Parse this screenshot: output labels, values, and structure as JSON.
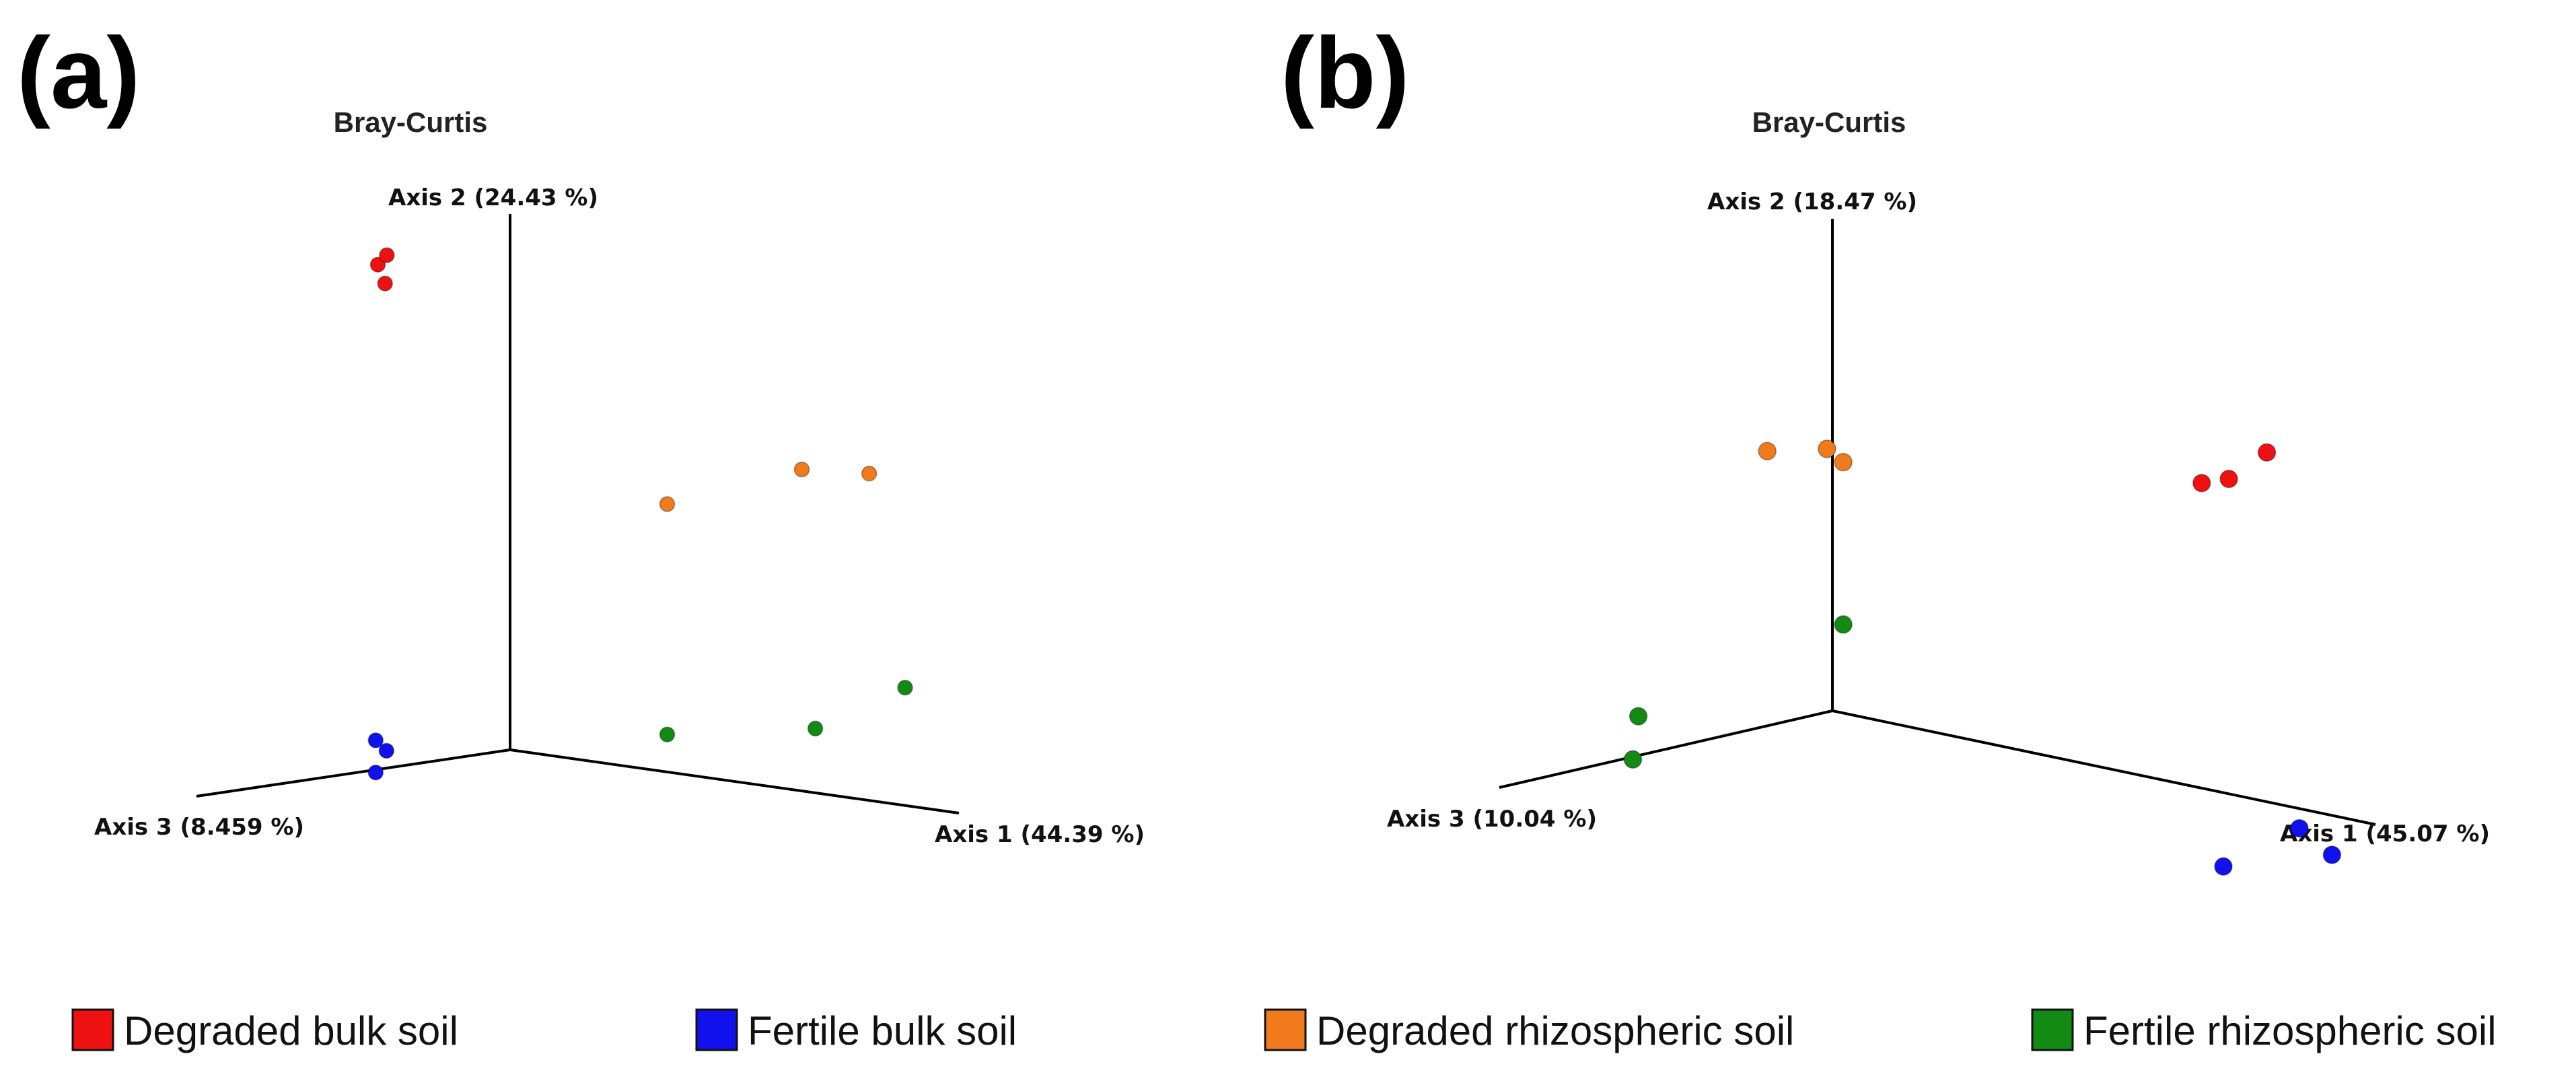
{
  "figure_panels": [
    "(a)",
    "(b)"
  ],
  "chart_data": [
    {
      "type": "scatter",
      "subtype": "3d-pcoa",
      "panel_label": "(a)",
      "title": "Bray-Curtis",
      "axes": {
        "x": "Axis 1 (44.39 %)",
        "y": "Axis 2 (24.43 %)",
        "z": "Axis 3 (8.459 %)"
      },
      "series": [
        {
          "name": "Degraded bulk soil",
          "color": "#ee1111",
          "points": [
            [
              -0.05,
              0.93,
              0.35
            ],
            [
              -0.03,
              0.95,
              0.35
            ],
            [
              -0.02,
              0.9,
              0.37
            ]
          ]
        },
        {
          "name": "Fertile bulk soil",
          "color": "#1111ee",
          "points": [
            [
              -0.02,
              0.05,
              0.4
            ],
            [
              -0.01,
              0.03,
              0.38
            ],
            [
              -0.02,
              -0.01,
              0.4
            ]
          ]
        },
        {
          "name": "Degraded rhizospheric soil",
          "color": "#f07a1c",
          "points": [
            [
              0.35,
              0.5,
              0.0
            ],
            [
              0.65,
              0.6,
              0.0
            ],
            [
              0.8,
              0.61,
              0.0
            ]
          ]
        },
        {
          "name": "Fertile rhizospheric soil",
          "color": "#138a13",
          "points": [
            [
              0.35,
              0.07,
              0.0
            ],
            [
              0.68,
              0.12,
              0.0
            ],
            [
              0.88,
              0.22,
              0.0
            ]
          ]
        }
      ]
    },
    {
      "type": "scatter",
      "subtype": "3d-pcoa",
      "panel_label": "(b)",
      "title": "Bray-Curtis",
      "axes": {
        "x": "Axis 1 (45.07 %)",
        "y": "Axis 2 (18.47 %)",
        "z": "Axis 3 (10.04 %)"
      },
      "series": [
        {
          "name": "Degraded bulk soil",
          "color": "#ee1111",
          "points": [
            [
              0.68,
              0.62,
              0.0
            ],
            [
              0.73,
              0.64,
              0.0
            ],
            [
              0.8,
              0.71,
              0.0
            ]
          ]
        },
        {
          "name": "Fertile bulk soil",
          "color": "#1111ee",
          "points": [
            [
              0.72,
              -0.15,
              0.0
            ],
            [
              0.86,
              -0.04,
              0.0
            ],
            [
              0.92,
              -0.08,
              0.0
            ]
          ]
        },
        {
          "name": "Degraded rhizospheric soil",
          "color": "#f07a1c",
          "points": [
            [
              -0.12,
              0.5,
              0.0
            ],
            [
              -0.01,
              0.53,
              0.0
            ],
            [
              0.02,
              0.51,
              0.0
            ]
          ]
        },
        {
          "name": "Fertile rhizospheric soil",
          "color": "#138a13",
          "points": [
            [
              0.02,
              0.18,
              0.0
            ],
            [
              -0.02,
              0.07,
              0.55
            ],
            [
              -0.03,
              -0.02,
              0.55
            ]
          ]
        }
      ]
    }
  ],
  "legend": [
    {
      "label": "Degraded bulk soil",
      "color": "#ee1111"
    },
    {
      "label": "Fertile bulk soil",
      "color": "#1111ee"
    },
    {
      "label": "Degraded rhizospheric soil",
      "color": "#f07a1c"
    },
    {
      "label": "Fertile  rhizospheric soil",
      "color": "#138a13"
    }
  ]
}
